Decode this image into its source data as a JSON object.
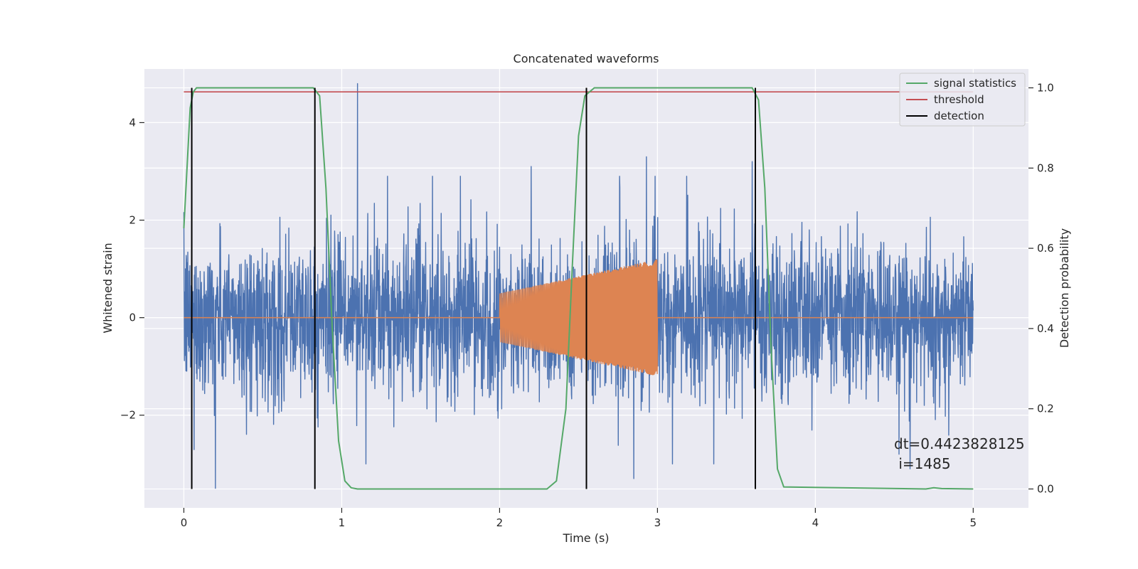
{
  "chart_data": {
    "type": "line",
    "title": "Concatenated waveforms",
    "xlabel": "Time (s)",
    "ylabel": "Whitened strain",
    "y2label": "Detection probability",
    "xlim": [
      -0.25,
      5.35
    ],
    "ylim": [
      -3.9,
      5.1
    ],
    "y2lim": [
      -0.047,
      1.047
    ],
    "xticks": [
      0,
      1,
      2,
      3,
      4,
      5
    ],
    "xtick_labels": [
      "0",
      "1",
      "2",
      "3",
      "4",
      "5"
    ],
    "yticks": [
      -2,
      0,
      2,
      4
    ],
    "ytick_labels": [
      "−2",
      "0",
      "2",
      "4"
    ],
    "y2ticks": [
      0.0,
      0.2,
      0.4,
      0.6,
      0.8,
      1.0
    ],
    "y2tick_labels": [
      "0.0",
      "0.2",
      "0.4",
      "0.6",
      "0.8",
      "1.0"
    ],
    "grid": true,
    "colors": {
      "background": "#EAEAF2",
      "strain": "#4C72B0",
      "template": "#DD8452",
      "statistics": "#55A868",
      "threshold": "#C44E52",
      "detection": "#000000"
    },
    "series": [
      {
        "name": "whitened strain",
        "axis": "left",
        "x_range": [
          0,
          5
        ],
        "envelope_typical": 1.4,
        "peaks": [
          {
            "x": 1.1,
            "y": 4.8
          },
          {
            "x": 2.93,
            "y": 3.3
          },
          {
            "x": 2.2,
            "y": 3.1
          },
          {
            "x": 3.6,
            "y": 3.2
          },
          {
            "x": 0.2,
            "y": -3.5
          },
          {
            "x": 2.55,
            "y": -3.3
          },
          {
            "x": 2.85,
            "y": -3.3
          },
          {
            "x": 4.6,
            "y": -3.1
          }
        ]
      },
      {
        "name": "injected waveform",
        "axis": "left",
        "x": [
          2.0,
          3.0
        ],
        "amplitude_start": 0.5,
        "amplitude_end": 1.2
      },
      {
        "name": "signal statistics",
        "axis": "right",
        "x": [
          0.0,
          0.02,
          0.04,
          0.06,
          0.08,
          0.1,
          0.78,
          0.82,
          0.86,
          0.9,
          0.94,
          0.98,
          1.02,
          1.06,
          1.1,
          2.3,
          2.36,
          2.42,
          2.46,
          2.5,
          2.54,
          2.6,
          2.7,
          3.6,
          3.64,
          3.68,
          3.72,
          3.76,
          3.8,
          4.7,
          4.75,
          4.8,
          5.0
        ],
        "values": [
          0.65,
          0.8,
          0.95,
          0.99,
          1.0,
          1.0,
          1.0,
          1.0,
          0.98,
          0.75,
          0.4,
          0.12,
          0.02,
          0.003,
          0.0,
          0.0,
          0.02,
          0.2,
          0.55,
          0.88,
          0.98,
          1.0,
          1.0,
          1.0,
          0.97,
          0.75,
          0.35,
          0.05,
          0.005,
          0.0,
          0.003,
          0.001,
          0.0
        ]
      },
      {
        "name": "threshold",
        "axis": "right",
        "value": 0.99,
        "x_range": [
          0,
          5
        ]
      },
      {
        "name": "detection",
        "axis": "right",
        "x": [
          0.05,
          0.83,
          2.55,
          3.62
        ],
        "y_range": [
          0,
          1
        ]
      }
    ],
    "legend": {
      "position": "top-right",
      "entries": [
        "signal statistics",
        "threshold",
        "detection"
      ]
    },
    "annotation": {
      "line1": "dt=0.4423828125",
      "line2": " i=1485"
    }
  }
}
